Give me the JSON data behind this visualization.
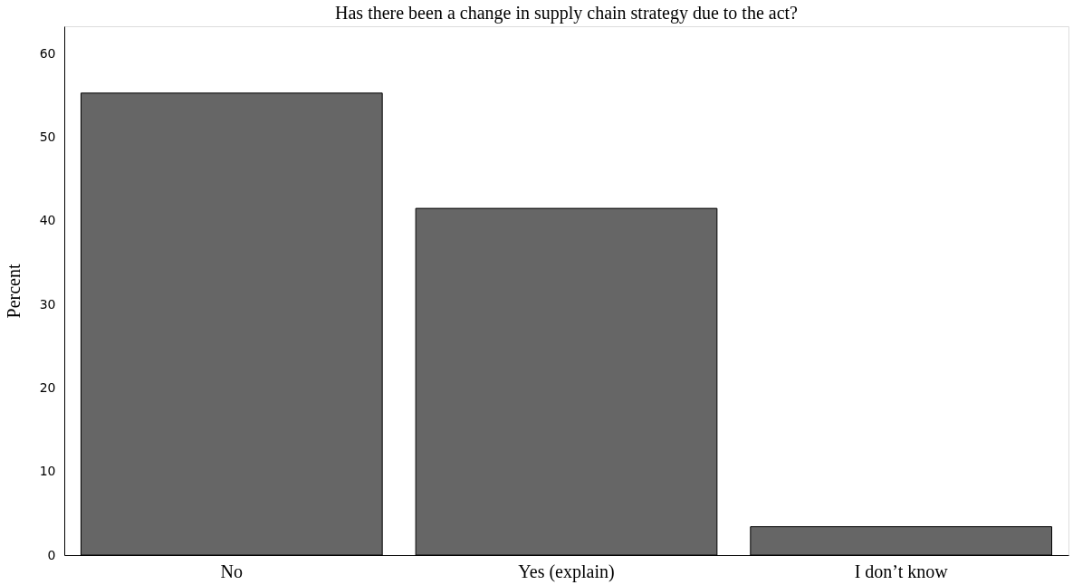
{
  "chart_data": {
    "type": "bar",
    "title": "Has there been a change in supply chain strategy due to the act?",
    "ylabel": "Percent",
    "categories": [
      "No",
      "Yes (explain)",
      "I don’t know"
    ],
    "values": [
      55.3,
      41.5,
      3.4
    ],
    "color": "#666666",
    "ylim": [
      0,
      63.3
    ],
    "yticks": [
      0,
      10,
      20,
      30,
      40,
      50,
      60
    ],
    "grid": false
  }
}
